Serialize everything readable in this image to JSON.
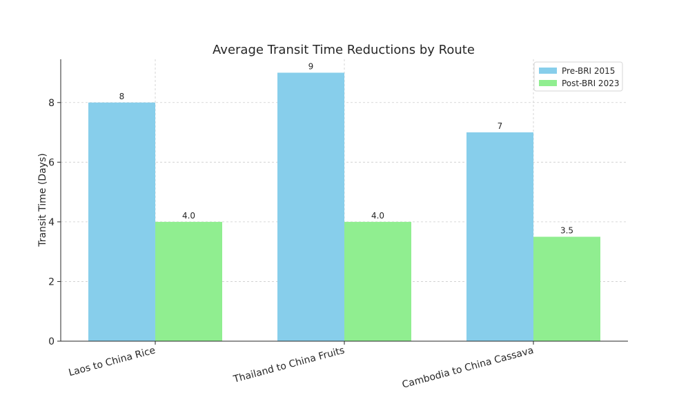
{
  "chart_data": {
    "type": "bar",
    "title": "Average Transit Time Reductions by Route",
    "xlabel": "",
    "ylabel": "Transit Time (Days)",
    "categories": [
      "Laos to China Rice",
      "Thailand to China Fruits",
      "Cambodia to China Cassava"
    ],
    "series": [
      {
        "name": "Pre-BRI 2015",
        "values": [
          8,
          9,
          7
        ],
        "labels": [
          "8",
          "9",
          "7"
        ],
        "color": "#87CEEB"
      },
      {
        "name": "Post-BRI 2023",
        "values": [
          4.0,
          4.0,
          3.5
        ],
        "labels": [
          "4.0",
          "4.0",
          "3.5"
        ],
        "color": "#90EE90"
      }
    ],
    "ylim": [
      0,
      9.45
    ],
    "yticks": [
      0,
      2,
      4,
      6,
      8
    ],
    "grid": true,
    "legend": "top-right"
  }
}
